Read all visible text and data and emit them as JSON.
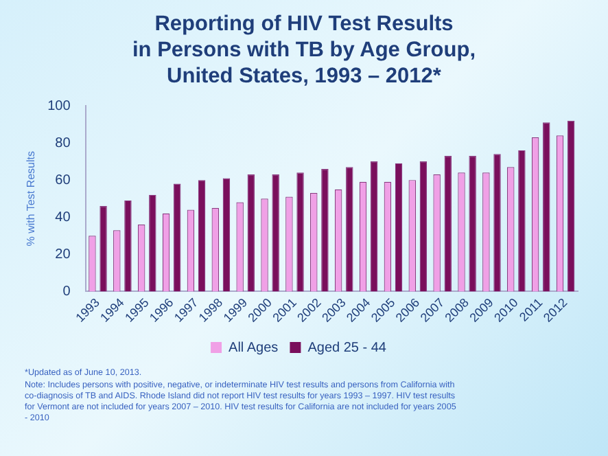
{
  "chart_data": {
    "type": "bar",
    "title": "Reporting of HIV Test Results\nin Persons with TB by Age Group,\nUnited States, 1993 – 2012*",
    "ylabel": "% with Test Results",
    "categories": [
      "1993",
      "1994",
      "1995",
      "1996",
      "1997",
      "1998",
      "1999",
      "2000",
      "2001",
      "2002",
      "2003",
      "2004",
      "2005",
      "2006",
      "2007",
      "2008",
      "2009",
      "2010",
      "2011",
      "2012"
    ],
    "series": [
      {
        "name": "All Ages",
        "color": "#f0a0e6",
        "values": [
          30,
          33,
          36,
          42,
          44,
          45,
          48,
          50,
          51,
          53,
          55,
          59,
          59,
          60,
          63,
          64,
          64,
          67,
          83,
          84
        ]
      },
      {
        "name": "Aged 25 - 44",
        "color": "#7a0f5c",
        "values": [
          46,
          49,
          52,
          58,
          60,
          61,
          63,
          63,
          64,
          66,
          67,
          70,
          69,
          70,
          73,
          73,
          74,
          76,
          91,
          92
        ]
      }
    ],
    "ylim": [
      0,
      100
    ],
    "yticks": [
      0,
      20,
      40,
      60,
      80,
      100
    ],
    "grid": false,
    "legend": "bottom",
    "annotations": [
      "*Updated as of June 10, 2013.",
      "Note: Includes persons with positive, negative, or indeterminate HIV test results and persons from California with co-diagnosis of TB and AIDS.  Rhode Island did not report HIV test results for years 1993 – 1997. HIV test results for Vermont are not included for years 2007 – 2010. HIV test results for California are not included for years 2005 - 2010"
    ]
  }
}
